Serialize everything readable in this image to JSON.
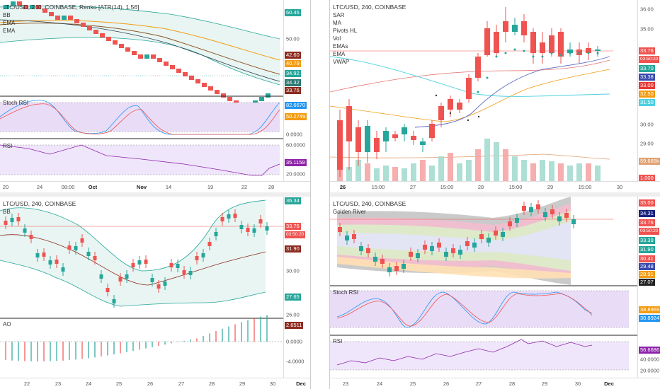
{
  "colors": {
    "up": "#26a69a",
    "down": "#ef5350",
    "bb_fill": "#e8f5f2",
    "stoch_fill": "#e9dcf7",
    "rsi_fill": "#efe6fb",
    "ema_orange": "#f39c12",
    "ema_brown": "#8d5524",
    "vwap": "#4dd0e1",
    "ma_blue": "#5c6bc0",
    "price_line": "#ef5350"
  },
  "panel_tl": {
    "title": "LTC/USD, 240, COINBASE, Renko [ATR(14), 1.56]",
    "indicators": [
      "BB",
      "EMA",
      "EMA"
    ],
    "stoch_label": "Stoch RSI",
    "rsi_label": "RSI",
    "price_ticks": [
      "60.46",
      "50.00",
      "42.60",
      "40.79",
      "34.92",
      "34.32",
      "33.76"
    ],
    "stoch_ticks": [
      "82.6670",
      "50.2749",
      "0.0000"
    ],
    "rsi_ticks": [
      "60.0000",
      "35.1159",
      "20.0000"
    ],
    "time_labels": [
      "20",
      "24",
      "08:00",
      "Oct",
      "Nov",
      "14",
      "19",
      "22",
      "28"
    ]
  },
  "panel_tr": {
    "title": "LTC/USD, 240, COINBASE",
    "indicators": [
      "SAR",
      "MA",
      "Pivots HL",
      "Vol",
      "EMAs",
      "EMA",
      "VWAP"
    ],
    "price_ticks": [
      "36.00",
      "35.00",
      "33.76",
      "03:50:20",
      "33.70",
      "33.38",
      "33.00",
      "32.50",
      "31.50",
      "30.00",
      "29.00",
      "59.665k",
      "1.000"
    ],
    "time_labels": [
      "26",
      "15:00",
      "27",
      "15:00",
      "28",
      "15:00",
      "29",
      "15:00",
      "30"
    ]
  },
  "panel_bl": {
    "title": "LTC/USD, 240, COINBASE",
    "indicators": [
      "BB"
    ],
    "ao_label": "AO",
    "price_ticks": [
      "36.34",
      "33.76",
      "03:50:20",
      "31.90",
      "30.00",
      "27.65",
      "26.00"
    ],
    "ao_ticks": [
      "2.6511",
      "0.0000",
      "-4.0000"
    ],
    "time_labels": [
      "22",
      "23",
      "24",
      "25",
      "26",
      "27",
      "28",
      "29",
      "30",
      "Dec"
    ]
  },
  "panel_br": {
    "title": "LTC/USD, 240, COINBASE",
    "indicators": [
      "Golden River"
    ],
    "stoch_label": "Stoch RSI",
    "rsi_label": "RSI",
    "price_ticks": [
      "35.00",
      "34.31",
      "33.76",
      "03:50:20",
      "33.39",
      "31.90",
      "30.41",
      "29.48",
      "28.91",
      "27.07"
    ],
    "stoch_ticks": [
      "38.8969",
      "30.8924"
    ],
    "rsi_ticks": [
      "56.6686",
      "40.0000",
      "20.0000"
    ],
    "time_labels": [
      "23",
      "24",
      "25",
      "26",
      "27",
      "28",
      "29",
      "30",
      "Dec"
    ]
  }
}
